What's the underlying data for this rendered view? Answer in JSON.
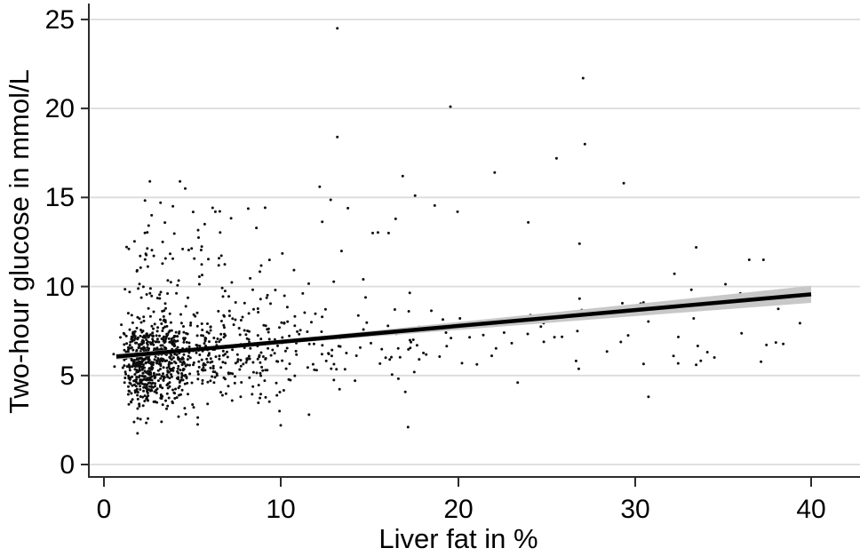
{
  "chart_data": {
    "type": "scatter",
    "xlabel": "Liver fat in %",
    "ylabel": "Two-hour glucose in mmol/L",
    "xlim": [
      0,
      40
    ],
    "ylim": [
      0,
      25
    ],
    "x_ticks": [
      0,
      10,
      20,
      30,
      40
    ],
    "y_ticks": [
      0,
      5,
      10,
      15,
      20,
      25
    ],
    "x_tick_labels": [
      "0",
      "10",
      "20",
      "30",
      "40"
    ],
    "y_tick_labels": [
      "0",
      "5",
      "10",
      "15",
      "20",
      "25"
    ],
    "grid": "horizontal-only",
    "legend": "none",
    "regression_line": {
      "intercept": 6.0,
      "slope": 0.089,
      "x_start": 0.7,
      "x_end": 40.0,
      "y_start": 6.06,
      "y_end": 9.56
    },
    "ci_band_halfwidth_anchors": [
      [
        0.7,
        0.17
      ],
      [
        5,
        0.1
      ],
      [
        10,
        0.12
      ],
      [
        15,
        0.16
      ],
      [
        20,
        0.22
      ],
      [
        25,
        0.28
      ],
      [
        30,
        0.34
      ],
      [
        35,
        0.41
      ],
      [
        40,
        0.48
      ]
    ],
    "outlier_points": [
      [
        13.2,
        24.5
      ],
      [
        27.1,
        21.7
      ],
      [
        19.6,
        20.1
      ],
      [
        13.2,
        18.4
      ],
      [
        27.2,
        18.0
      ],
      [
        25.6,
        17.2
      ],
      [
        22.1,
        16.4
      ],
      [
        29.4,
        15.8
      ],
      [
        16.9,
        16.2
      ],
      [
        12.2,
        15.6
      ],
      [
        17.6,
        15.1
      ],
      [
        2.6,
        15.9
      ],
      [
        4.3,
        15.9
      ],
      [
        4.6,
        15.5
      ],
      [
        3.2,
        14.7
      ],
      [
        3.9,
        14.5
      ],
      [
        2.7,
        14.0
      ],
      [
        6.3,
        14.2
      ],
      [
        5.7,
        13.5
      ],
      [
        13.8,
        14.4
      ],
      [
        16.5,
        13.8
      ],
      [
        15.2,
        13.0
      ],
      [
        16.1,
        13.0
      ],
      [
        20.0,
        14.2
      ],
      [
        24.0,
        13.6
      ],
      [
        26.9,
        12.4
      ],
      [
        33.5,
        12.2
      ],
      [
        36.5,
        11.5
      ],
      [
        37.3,
        11.5
      ],
      [
        1.9,
        1.75
      ],
      [
        5.3,
        2.25
      ],
      [
        10.0,
        2.2
      ],
      [
        17.2,
        2.1
      ],
      [
        11.6,
        2.8
      ],
      [
        23.4,
        4.6
      ],
      [
        30.8,
        3.8
      ],
      [
        0.55,
        6.2
      ],
      [
        0.6,
        5.5
      ]
    ],
    "point_clusters": [
      {
        "n": 620,
        "x": {
          "dist": "lognormal",
          "mu": 1.02,
          "sigma": 0.42,
          "min": 0.8,
          "max": 9.5
        },
        "y": {
          "dist": "normal",
          "mean": 5.8,
          "sd": 1.15,
          "min": 3.2,
          "max": 9.0
        }
      },
      {
        "n": 250,
        "x": {
          "dist": "lognormal",
          "mu": 1.95,
          "sigma": 0.5,
          "min": 2.5,
          "max": 20
        },
        "y": {
          "dist": "normal",
          "mean": 6.5,
          "sd": 1.5,
          "min": 3.4,
          "max": 10.6
        }
      },
      {
        "n": 70,
        "x": {
          "dist": "uniform",
          "min": 8,
          "max": 22
        },
        "y": {
          "dist": "normal",
          "mean": 6.8,
          "sd": 1.45,
          "min": 3.8,
          "max": 11.2
        }
      },
      {
        "n": 48,
        "x": {
          "dist": "uniform",
          "min": 20,
          "max": 40
        },
        "y": {
          "dist": "normal",
          "mean": 7.3,
          "sd": 1.5,
          "min": 4.2,
          "max": 11.6
        }
      },
      {
        "n": 70,
        "x": {
          "dist": "lognormal",
          "mu": 1.45,
          "sigma": 0.6,
          "min": 1,
          "max": 16
        },
        "y": {
          "dist": "uniform",
          "min": 9.2,
          "max": 12.3
        }
      },
      {
        "n": 22,
        "x": {
          "dist": "lognormal",
          "mu": 1.6,
          "sigma": 0.75,
          "min": 1.5,
          "max": 22
        },
        "y": {
          "dist": "uniform",
          "min": 12.3,
          "max": 14.9
        }
      },
      {
        "n": 20,
        "x": {
          "dist": "lognormal",
          "mu": 1.2,
          "sigma": 0.55,
          "min": 1.2,
          "max": 12
        },
        "y": {
          "dist": "uniform",
          "min": 2.3,
          "max": 4.0
        }
      }
    ],
    "seed": 7,
    "colors": {
      "background": "#ffffff",
      "text": "#000000",
      "axis": "#2b2b2b",
      "grid": "#dcdcdc",
      "band": "#c8c8c8",
      "line": "#000000",
      "point": "#0d0d0d"
    }
  }
}
